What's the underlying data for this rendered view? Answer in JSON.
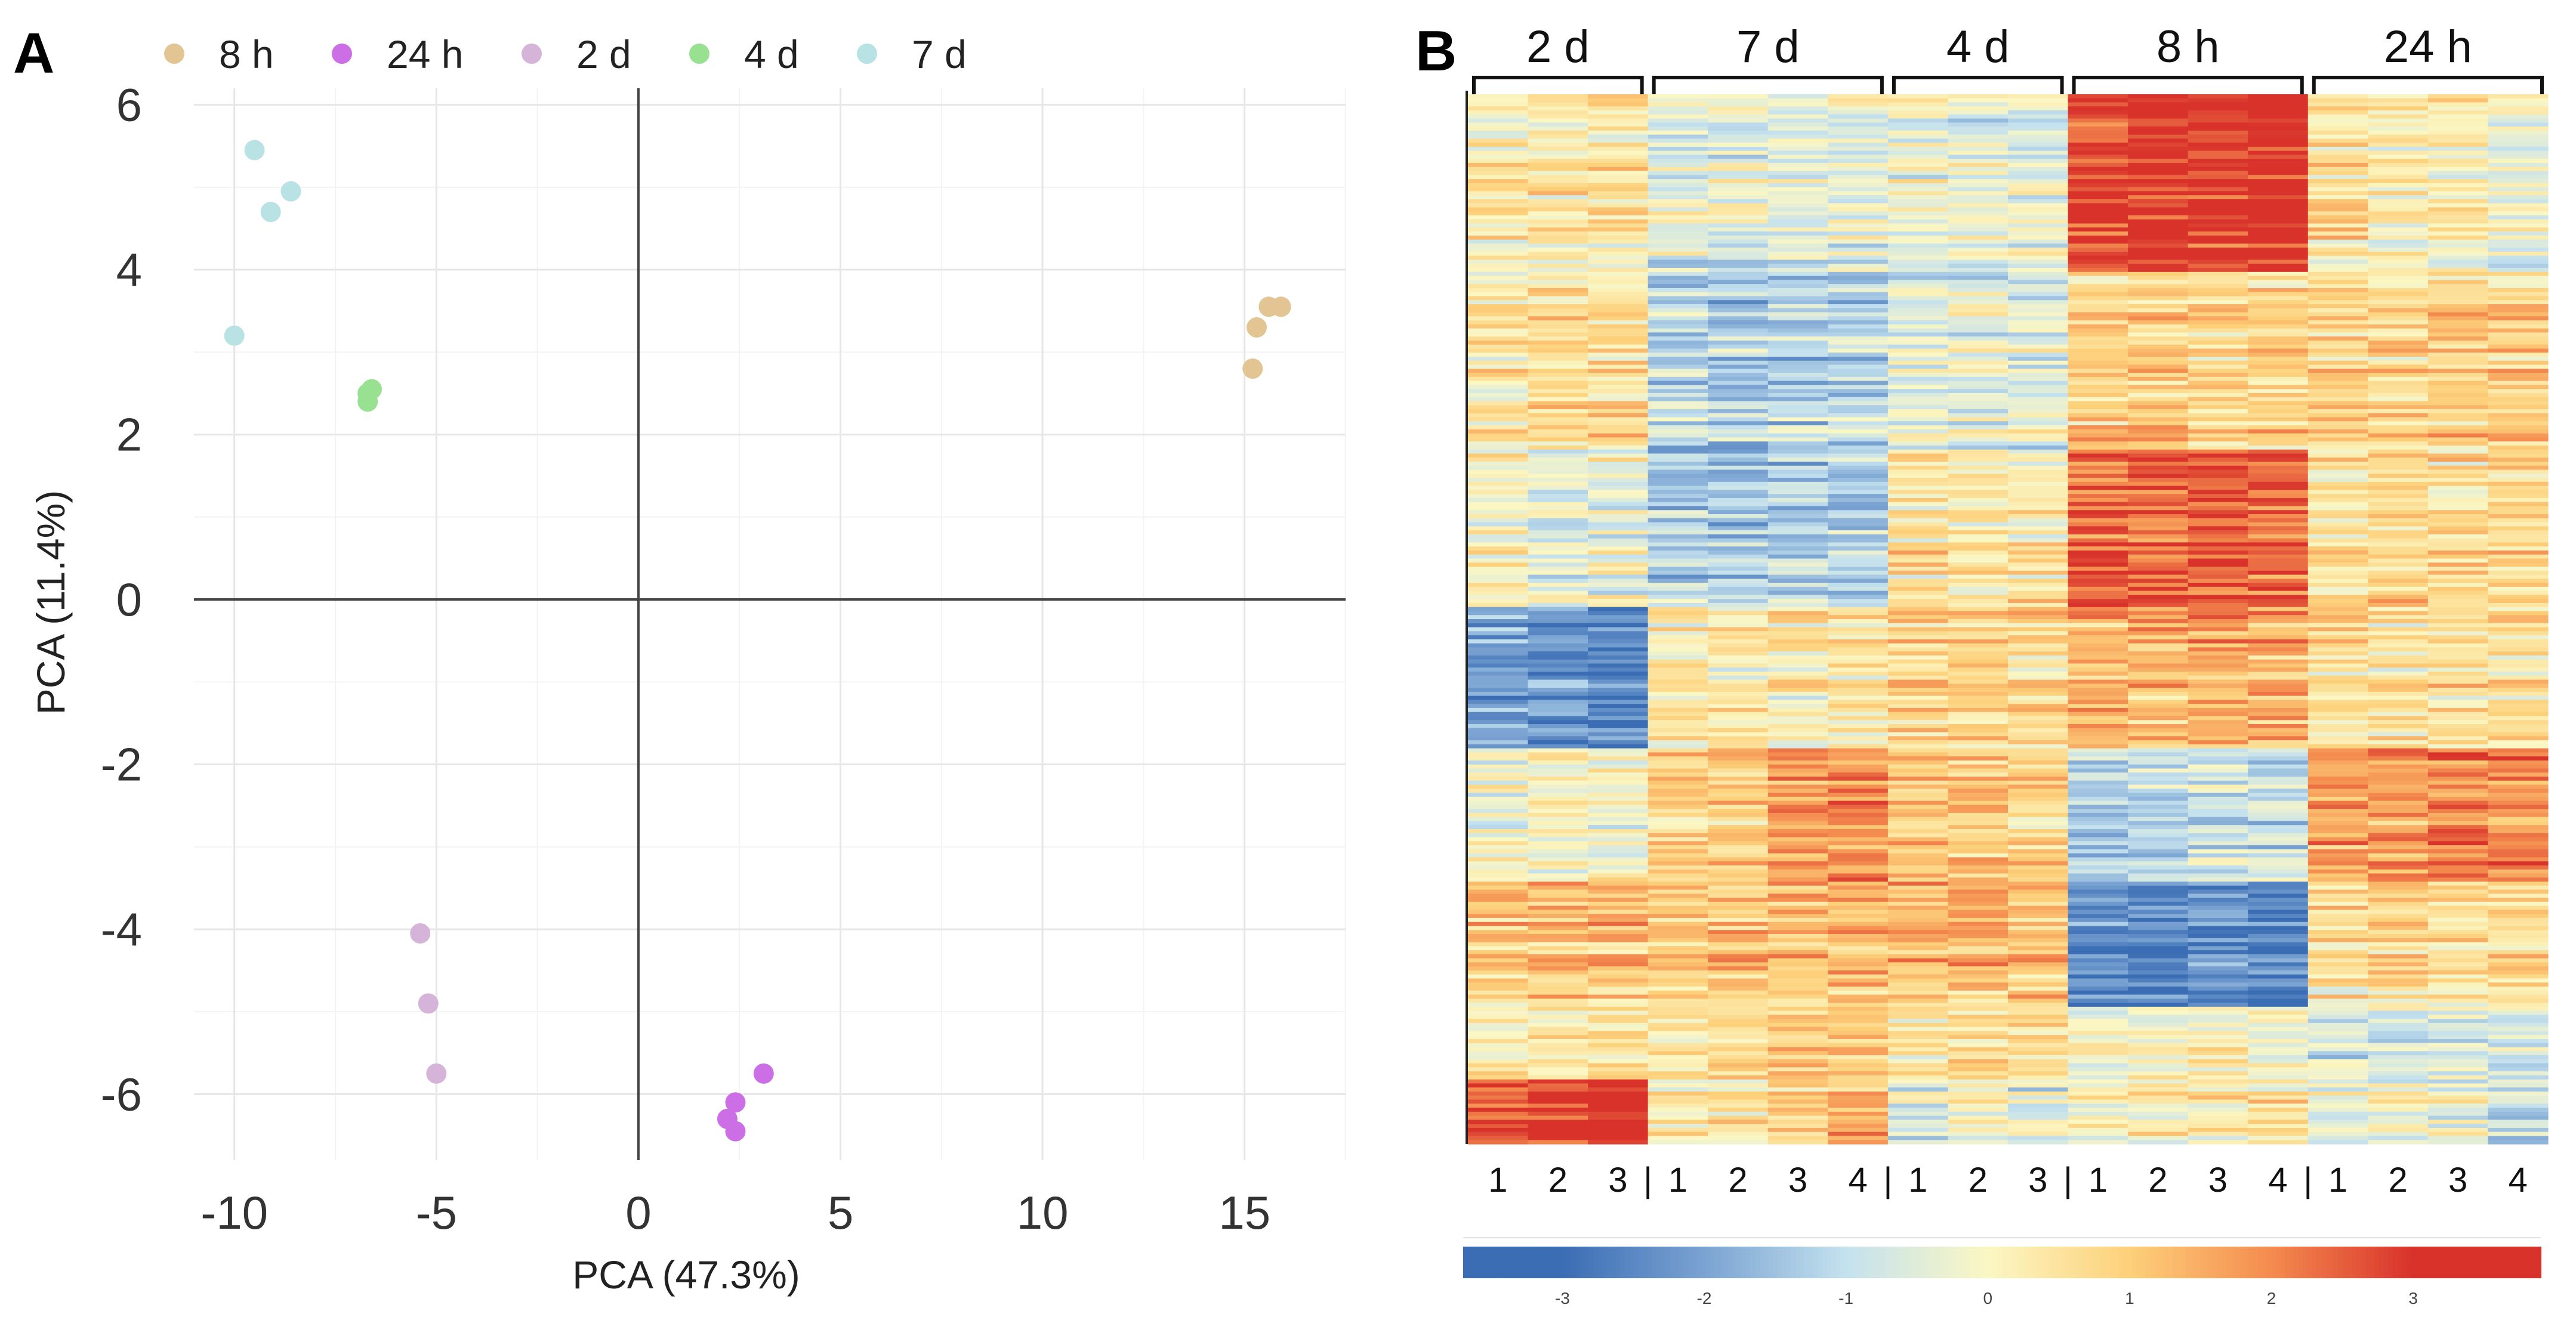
{
  "figure": {
    "panel_a_letter": "A",
    "panel_b_letter": "B"
  },
  "chart_data": [
    {
      "type": "scatter",
      "panel": "A",
      "title": "",
      "xlabel": "PCA (47.3%)",
      "ylabel": "PCA (11.4%)",
      "xlim": [
        -11,
        17.5
      ],
      "ylim": [
        -6.8,
        6.2
      ],
      "xticks": [
        -10,
        -5,
        0,
        5,
        10,
        15
      ],
      "yticks": [
        6,
        4,
        2,
        0,
        -2,
        -4,
        -6
      ],
      "xtick_labels": [
        "-10",
        "-5",
        "0",
        "5",
        "10",
        "15"
      ],
      "ytick_labels": [
        "6",
        "4",
        "2",
        "0",
        "-2",
        "-4",
        "-6"
      ],
      "grid": true,
      "legend_position": "top",
      "series": [
        {
          "name": "8 h",
          "color": "#e2c592",
          "points": [
            [
              15.2,
              2.8
            ],
            [
              15.3,
              3.3
            ],
            [
              15.6,
              3.55
            ],
            [
              15.9,
              3.55
            ]
          ]
        },
        {
          "name": "24 h",
          "color": "#cc6ee6",
          "points": [
            [
              3.1,
              -5.75
            ],
            [
              2.4,
              -6.1
            ],
            [
              2.2,
              -6.3
            ],
            [
              2.4,
              -6.45
            ]
          ]
        },
        {
          "name": "2 d",
          "color": "#d6b3d8",
          "points": [
            [
              -5.4,
              -4.05
            ],
            [
              -5.2,
              -4.9
            ],
            [
              -5.0,
              -5.75
            ]
          ]
        },
        {
          "name": "4 d",
          "color": "#97e190",
          "points": [
            [
              -6.6,
              2.55
            ],
            [
              -6.7,
              2.5
            ],
            [
              -6.7,
              2.4
            ]
          ]
        },
        {
          "name": "7 d",
          "color": "#b8e2e3",
          "points": [
            [
              -9.5,
              5.45
            ],
            [
              -8.6,
              4.95
            ],
            [
              -9.1,
              4.7
            ],
            [
              -10.0,
              3.2
            ]
          ]
        }
      ]
    },
    {
      "type": "heatmap",
      "panel": "B",
      "title": "",
      "group_labels": [
        "2 d",
        "7 d",
        "4 d",
        "8 h",
        "24 h"
      ],
      "group_sizes": [
        3,
        4,
        3,
        4,
        4
      ],
      "column_labels": [
        "1",
        "2",
        "3",
        "1",
        "2",
        "3",
        "4",
        "1",
        "2",
        "3",
        "1",
        "2",
        "3",
        "4",
        "1",
        "2",
        "3",
        "4"
      ],
      "separator_glyph": "|",
      "color_scale": {
        "ticks": [
          "-3",
          "-2",
          "-1",
          "0",
          "1",
          "2",
          "3"
        ],
        "tick_values": [
          -3,
          -2,
          -1,
          0,
          1,
          2,
          3
        ],
        "range": [
          -3.7,
          3.9
        ],
        "colors": [
          "#3b6db4",
          "#7aa3d2",
          "#c4e1ee",
          "#fbf7c4",
          "#fdd07a",
          "#f48b4f",
          "#d8322b"
        ]
      },
      "row_count": 260,
      "cluster_profiles": [
        {
          "name": "cluster-1",
          "rows": [
            0,
            0.17
          ],
          "means": [
            0.2,
            0.3,
            0.3,
            -0.5,
            -0.4,
            -0.4,
            -0.4,
            -0.3,
            -0.3,
            -0.3,
            2.8,
            2.9,
            3.0,
            3.1,
            0.5,
            0.2,
            0.1,
            -0.3
          ]
        },
        {
          "name": "cluster-2",
          "rows": [
            0.17,
            0.34
          ],
          "means": [
            0.5,
            0.6,
            0.6,
            -1.1,
            -1.3,
            -1.2,
            -1.0,
            -0.5,
            -0.4,
            -0.5,
            0.9,
            0.9,
            0.8,
            0.9,
            0.8,
            0.8,
            1.0,
            1.0
          ]
        },
        {
          "name": "cluster-3",
          "rows": [
            0.34,
            0.49
          ],
          "means": [
            0.0,
            -0.4,
            -0.2,
            -1.2,
            -1.4,
            -1.2,
            -1.2,
            0.5,
            0.4,
            0.4,
            2.4,
            2.5,
            2.6,
            2.4,
            0.4,
            0.7,
            0.6,
            0.7
          ]
        },
        {
          "name": "cluster-4",
          "rows": [
            0.49,
            0.625
          ],
          "means": [
            -2.0,
            -2.3,
            -2.7,
            0.3,
            0.2,
            0.2,
            0.3,
            0.7,
            0.7,
            0.7,
            1.3,
            1.3,
            1.5,
            1.4,
            0.6,
            0.4,
            0.5,
            0.6
          ]
        },
        {
          "name": "cluster-5",
          "rows": [
            0.625,
            0.75
          ],
          "means": [
            -0.4,
            -0.2,
            -0.2,
            0.7,
            0.8,
            1.5,
            1.8,
            0.9,
            0.9,
            0.7,
            -1.4,
            -1.1,
            -0.8,
            -1.1,
            1.5,
            1.6,
            2.0,
            1.9
          ]
        },
        {
          "name": "cluster-6",
          "rows": [
            0.75,
            0.87
          ],
          "means": [
            1.0,
            1.0,
            1.1,
            1.0,
            1.1,
            1.2,
            1.3,
            1.2,
            1.3,
            1.2,
            -2.6,
            -2.7,
            -2.5,
            -2.7,
            0.5,
            0.6,
            0.5,
            0.6
          ]
        },
        {
          "name": "cluster-7",
          "rows": [
            0.87,
            0.94
          ],
          "means": [
            0.3,
            0.4,
            0.4,
            0.4,
            0.6,
            1.0,
            1.2,
            0.3,
            0.5,
            0.5,
            -0.2,
            0.0,
            0.1,
            0.0,
            -0.7,
            -0.6,
            -0.6,
            -0.8
          ]
        },
        {
          "name": "cluster-8",
          "rows": [
            0.94,
            1.0
          ],
          "means": [
            2.6,
            3.0,
            3.4,
            0.3,
            0.5,
            0.8,
            1.5,
            -0.4,
            -0.3,
            -0.5,
            0.3,
            0.2,
            0.4,
            0.3,
            -0.4,
            -0.2,
            -0.3,
            -0.8
          ]
        }
      ]
    }
  ]
}
